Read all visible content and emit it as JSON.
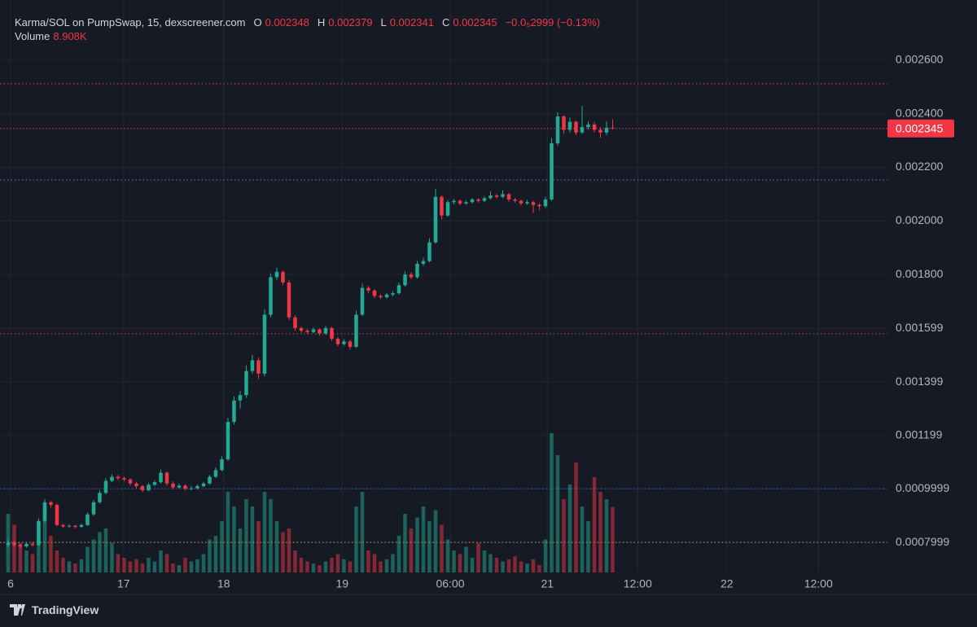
{
  "chart_data": {
    "type": "candlestick",
    "header": {
      "title": "Karma/SOL on PumpSwap, 15, dexscreener.com",
      "o_label": "O",
      "h_label": "H",
      "l_label": "L",
      "c_label": "C",
      "change": "−0.0₅2999 (−0.13%)",
      "volume_label": "Volume",
      "volume_value": "8.908K"
    },
    "footer": "TradingView",
    "up_color": "#22ab94",
    "down_color": "#f23645",
    "open": [
      0.00079,
      0.0008,
      0.00079,
      0.000785,
      0.000795,
      0.00079,
      0.00088,
      0.00095,
      0.00094,
      0.000865,
      0.00086,
      0.000862,
      0.000858,
      0.000865,
      0.000905,
      0.00095,
      0.000985,
      0.00103,
      0.001045,
      0.00104,
      0.001035,
      0.00102,
      0.00101,
      0.000995,
      0.001015,
      0.001025,
      0.00106,
      0.00102,
      0.001005,
      0.001012,
      0.001,
      0.001002,
      0.00101,
      0.00102,
      0.001045,
      0.00107,
      0.00111,
      0.00125,
      0.00133,
      0.00135,
      0.00144,
      0.00148,
      0.00143,
      0.00165,
      0.00179,
      0.00181,
      0.00177,
      0.00164,
      0.0016,
      0.00159,
      0.001585,
      0.001595,
      0.00158,
      0.0016,
      0.00156,
      0.00154,
      0.00155,
      0.00153,
      0.00165,
      0.00175,
      0.00174,
      0.00172,
      0.001715,
      0.001725,
      0.00173,
      0.00176,
      0.0018,
      0.00179,
      0.00184,
      0.00185,
      0.00192,
      0.00209,
      0.00202,
      0.00207,
      0.002075,
      0.002065,
      0.00207,
      0.00208,
      0.002075,
      0.002085,
      0.002095,
      0.00209,
      0.0021,
      0.00208,
      0.002075,
      0.002065,
      0.00207,
      0.00206,
      0.002055,
      0.00208,
      0.00229,
      0.00239,
      0.00234,
      0.00237,
      0.00233,
      0.00235,
      0.00236,
      0.00234,
      0.00233,
      0.002348
    ],
    "high": [
      0.00081,
      0.000806,
      0.000795,
      0.0008,
      0.000802,
      0.00089,
      0.000962,
      0.000955,
      0.000945,
      0.00087,
      0.000868,
      0.000866,
      0.00087,
      0.000912,
      0.000958,
      0.000995,
      0.00104,
      0.001055,
      0.001052,
      0.001046,
      0.00104,
      0.001026,
      0.001015,
      0.001022,
      0.001032,
      0.001072,
      0.001065,
      0.001028,
      0.00102,
      0.001018,
      0.00101,
      0.001016,
      0.001026,
      0.001052,
      0.00108,
      0.001122,
      0.001265,
      0.001345,
      0.001365,
      0.00146,
      0.0015,
      0.00149,
      0.00167,
      0.001805,
      0.001825,
      0.001815,
      0.00178,
      0.001648,
      0.001606,
      0.001596,
      0.001602,
      0.0016,
      0.001608,
      0.001605,
      0.001566,
      0.001558,
      0.001556,
      0.001665,
      0.001765,
      0.001758,
      0.001746,
      0.001726,
      0.001732,
      0.001738,
      0.00177,
      0.001812,
      0.001808,
      0.00185,
      0.001862,
      0.001935,
      0.00212,
      0.002095,
      0.002078,
      0.002082,
      0.00208,
      0.002076,
      0.002086,
      0.002085,
      0.002092,
      0.00211,
      0.002102,
      0.002115,
      0.002105,
      0.002086,
      0.00208,
      0.002078,
      0.002075,
      0.002066,
      0.00209,
      0.00231,
      0.002405,
      0.002395,
      0.002385,
      0.002375,
      0.00243,
      0.002372,
      0.002368,
      0.00235,
      0.002372,
      0.002379
    ],
    "low": [
      0.000782,
      0.000784,
      0.000778,
      0.00078,
      0.000785,
      0.000788,
      0.000875,
      0.00093,
      0.00086,
      0.000855,
      0.000856,
      0.000852,
      0.000855,
      0.000862,
      0.0009,
      0.000945,
      0.00098,
      0.001025,
      0.001032,
      0.001028,
      0.001012,
      0.001002,
      0.000988,
      0.00099,
      0.00101,
      0.00102,
      0.001012,
      0.000998,
      0.001,
      0.000994,
      0.000995,
      0.000998,
      0.001005,
      0.001015,
      0.00104,
      0.001065,
      0.001105,
      0.00124,
      0.0013,
      0.00134,
      0.00143,
      0.00141,
      0.00142,
      0.00164,
      0.00178,
      0.00176,
      0.00163,
      0.00159,
      0.001582,
      0.001578,
      0.00158,
      0.001572,
      0.001575,
      0.001552,
      0.001532,
      0.001534,
      0.00152,
      0.001526,
      0.001645,
      0.00173,
      0.001712,
      0.001708,
      0.00171,
      0.001718,
      0.001725,
      0.001755,
      0.001782,
      0.001785,
      0.001832,
      0.001845,
      0.001915,
      0.002005,
      0.002015,
      0.002062,
      0.002058,
      0.00206,
      0.002065,
      0.002068,
      0.00207,
      0.00208,
      0.002084,
      0.002085,
      0.002072,
      0.002068,
      0.002058,
      0.00206,
      0.00203,
      0.00204,
      0.002048,
      0.002075,
      0.00228,
      0.002325,
      0.00233,
      0.00232,
      0.002325,
      0.00234,
      0.00233,
      0.00231,
      0.00232,
      0.002341
    ],
    "close": [
      0.0008,
      0.00079,
      0.000785,
      0.000795,
      0.00079,
      0.00088,
      0.00095,
      0.00094,
      0.000865,
      0.00086,
      0.000862,
      0.000858,
      0.000865,
      0.000905,
      0.00095,
      0.000985,
      0.00103,
      0.001045,
      0.00104,
      0.001035,
      0.00102,
      0.00101,
      0.000995,
      0.001015,
      0.001025,
      0.00106,
      0.00102,
      0.001005,
      0.001012,
      0.001,
      0.001002,
      0.00101,
      0.00102,
      0.001045,
      0.00107,
      0.00111,
      0.00125,
      0.00133,
      0.00135,
      0.00144,
      0.00148,
      0.00143,
      0.00165,
      0.00179,
      0.00181,
      0.00177,
      0.00164,
      0.0016,
      0.00159,
      0.001585,
      0.001595,
      0.00158,
      0.0016,
      0.00156,
      0.00154,
      0.00155,
      0.00153,
      0.00165,
      0.00175,
      0.00174,
      0.00172,
      0.001715,
      0.001725,
      0.00173,
      0.00176,
      0.0018,
      0.00179,
      0.00184,
      0.00185,
      0.00192,
      0.00209,
      0.00202,
      0.00207,
      0.002075,
      0.002065,
      0.00207,
      0.00208,
      0.002075,
      0.002085,
      0.002095,
      0.00209,
      0.0021,
      0.00208,
      0.002075,
      0.002065,
      0.00207,
      0.00206,
      0.002055,
      0.00208,
      0.00229,
      0.00239,
      0.00234,
      0.00237,
      0.00233,
      0.00235,
      0.00236,
      0.00234,
      0.00233,
      0.002348,
      0.002345
    ],
    "volume": [
      8000,
      6500,
      4000,
      3000,
      2500,
      7000,
      9000,
      5000,
      3000,
      2000,
      1500,
      1200,
      1800,
      3500,
      4500,
      5500,
      6000,
      4000,
      2500,
      2000,
      1500,
      1800,
      1200,
      2000,
      1500,
      3000,
      2500,
      1200,
      1000,
      2000,
      1500,
      1800,
      2500,
      4500,
      5000,
      7000,
      11000,
      9000,
      6000,
      10000,
      9000,
      7000,
      11000,
      10000,
      7000,
      5500,
      6000,
      3000,
      2000,
      1500,
      1200,
      1000,
      1500,
      2000,
      2500,
      1800,
      1500,
      9000,
      11000,
      3000,
      2500,
      1500,
      1800,
      2500,
      5000,
      8000,
      6000,
      7500,
      9000,
      7000,
      8500,
      6500,
      4500,
      3000,
      2500,
      3500,
      2000,
      4000,
      3000,
      2500,
      2000,
      1500,
      1800,
      2200,
      1500,
      1200,
      1800,
      1000,
      4500,
      19000,
      16000,
      10000,
      12000,
      15000,
      9000,
      7000,
      13000,
      11000,
      10000,
      8908
    ],
    "volume_lim": [
      0,
      20000
    ],
    "xlim": [
      -1.33,
      144
    ],
    "xticks": [
      {
        "value": 0.4,
        "label": "6"
      },
      {
        "value": 18.9,
        "label": "17"
      },
      {
        "value": 35.3,
        "label": "18"
      },
      {
        "value": 54.7,
        "label": "19"
      },
      {
        "value": 72.4,
        "label": "06:00"
      },
      {
        "value": 88.3,
        "label": "21"
      },
      {
        "value": 103.1,
        "label": "12:00"
      },
      {
        "value": 117.7,
        "label": "22"
      },
      {
        "value": 132.7,
        "label": "12:00"
      }
    ],
    "ylim": [
      0.000688,
      0.002703
    ],
    "yticks": [
      {
        "value": 0.0026,
        "label": "0.002600"
      },
      {
        "value": 0.0024,
        "label": "0.002400"
      },
      {
        "value": 0.0022,
        "label": "0.002200"
      },
      {
        "value": 0.002,
        "label": "0.002000"
      },
      {
        "value": 0.0018,
        "label": "0.001800"
      },
      {
        "value": 0.001599,
        "label": "0.001599"
      },
      {
        "value": 0.001399,
        "label": "0.001399"
      },
      {
        "value": 0.001199,
        "label": "0.001199"
      },
      {
        "value": 0.0009999,
        "label": "0.0009999"
      },
      {
        "value": 0.0007999,
        "label": "0.0007999"
      }
    ],
    "levels": [
      {
        "value": 0.002512,
        "color": "#f23645"
      },
      {
        "value": 0.002153,
        "color": "#9c6ade"
      },
      {
        "value": 0.001579,
        "color": "#f23645"
      },
      {
        "value": 0.001001,
        "color": "#3c5ccf"
      },
      {
        "value": 0.0008,
        "color": "#e0a030"
      }
    ],
    "grid": true
  }
}
